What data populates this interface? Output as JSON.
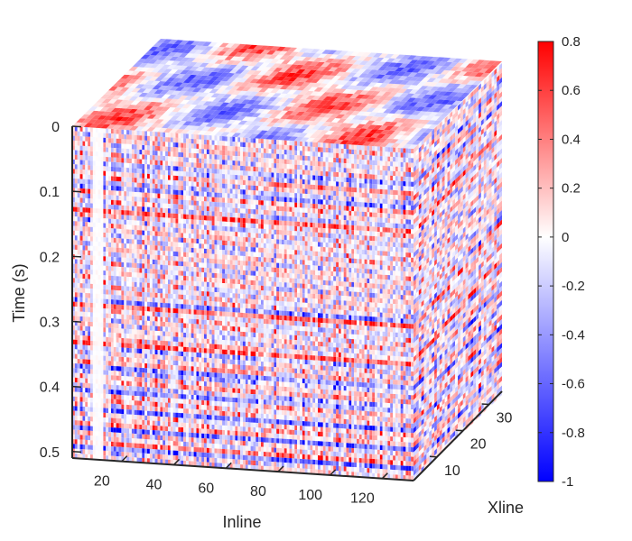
{
  "chart_data": {
    "type": "heatmap",
    "subtype": "3d-volume-cube",
    "title": "",
    "xlabel": "Inline",
    "ylabel": "Time (s)",
    "zlabel": "Xline",
    "x_ticks": [
      20,
      40,
      60,
      80,
      100,
      120
    ],
    "x_tick_labels": [
      "20",
      "40",
      "60",
      "80",
      "100",
      "120"
    ],
    "xlim": [
      1,
      132
    ],
    "y_ticks": [
      0,
      0.1,
      0.2,
      0.3,
      0.4,
      0.5
    ],
    "y_tick_labels": [
      "0",
      "0.1",
      "0.2",
      "0.3",
      "0.4",
      "0.5"
    ],
    "ylim": [
      0,
      0.51
    ],
    "z_ticks": [
      10,
      20,
      30
    ],
    "z_tick_labels": [
      "10",
      "20",
      "30"
    ],
    "zlim": [
      1,
      35
    ],
    "colormap": "blue-white-red",
    "colorbar": {
      "ticks": [
        0.8,
        0.6,
        0.4,
        0.2,
        0,
        -0.2,
        -0.4,
        -0.6,
        -0.8,
        -1
      ],
      "tick_labels": [
        "0.8",
        "0.6",
        "0.4",
        "0.2",
        "0",
        "-0.2",
        "-0.4",
        "-0.6",
        "-0.8",
        "-1"
      ],
      "range": [
        -1,
        0.8
      ],
      "color_min": "#0000ff",
      "color_mid": "#ffffff",
      "color_max": "#ff0000"
    },
    "strong_reflection_times": [
      0.06,
      0.09,
      0.13,
      0.27,
      0.33,
      0.37,
      0.4,
      0.43,
      0.46,
      0.49
    ],
    "quiet_traces": [
      8,
      9,
      10,
      11
    ]
  }
}
